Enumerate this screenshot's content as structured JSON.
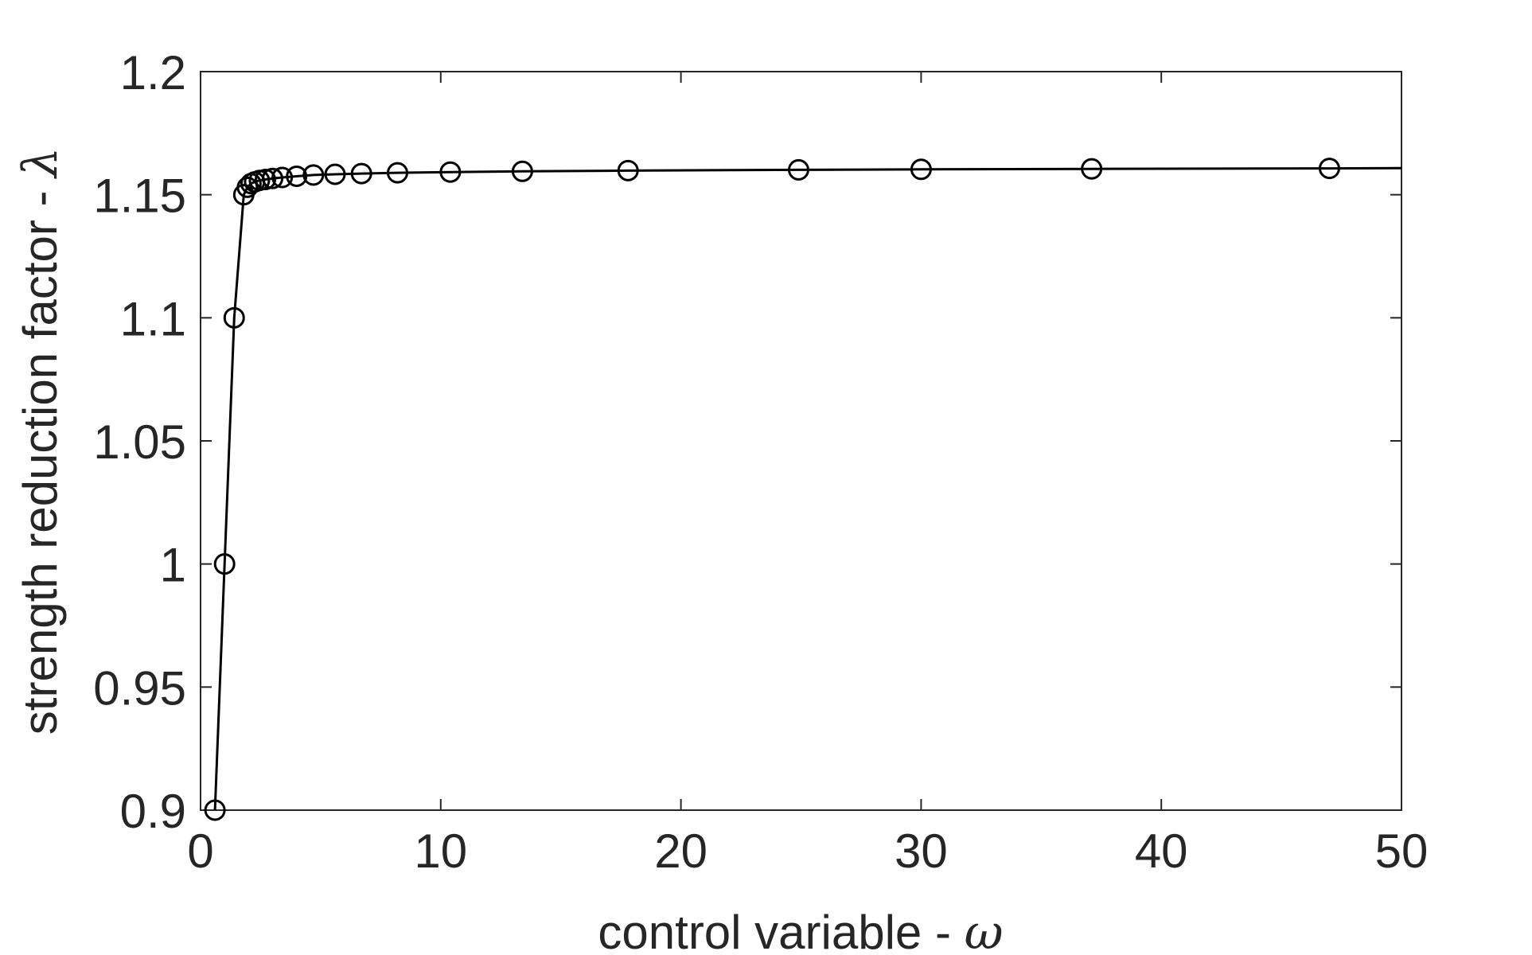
{
  "chart_data": {
    "type": "line",
    "title": "",
    "xlabel": "control variable - ",
    "xlabel_symbol": "ω",
    "ylabel": "strength reduction factor - ",
    "ylabel_symbol": "λ",
    "xlim": [
      0,
      50
    ],
    "ylim": [
      0.9,
      1.2
    ],
    "xticks": [
      0,
      10,
      20,
      30,
      40,
      50
    ],
    "xtick_labels": [
      "0",
      "10",
      "20",
      "30",
      "40",
      "50"
    ],
    "yticks": [
      0.9,
      0.95,
      1.0,
      1.05,
      1.1,
      1.15,
      1.2
    ],
    "ytick_labels": [
      "0.9",
      "0.95",
      "1",
      "1.05",
      "1.1",
      "1.15",
      "1.2"
    ],
    "grid": false,
    "legend": "none",
    "line_color": "#000000",
    "axis_color": "#262626",
    "marker": "circle-open",
    "series": [
      {
        "x": [
          0.6,
          1.0,
          1.4,
          1.8,
          1.95,
          2.1,
          2.25,
          2.45,
          2.7,
          3.0,
          3.4,
          4.0,
          4.7,
          5.6,
          6.7,
          8.2,
          10.4,
          13.4,
          17.8,
          24.9,
          30.0,
          37.1,
          47.0,
          50.0
        ],
        "y": [
          0.9,
          1.0,
          1.1,
          1.15,
          1.153,
          1.1545,
          1.1552,
          1.1558,
          1.1562,
          1.1566,
          1.157,
          1.1575,
          1.158,
          1.1583,
          1.1586,
          1.1589,
          1.1592,
          1.1595,
          1.1598,
          1.1601,
          1.1603,
          1.1605,
          1.1607,
          1.1608
        ],
        "markers": [
          true,
          true,
          true,
          true,
          true,
          true,
          true,
          true,
          true,
          true,
          true,
          true,
          true,
          true,
          true,
          true,
          true,
          true,
          true,
          true,
          true,
          true,
          true,
          false
        ]
      }
    ]
  }
}
